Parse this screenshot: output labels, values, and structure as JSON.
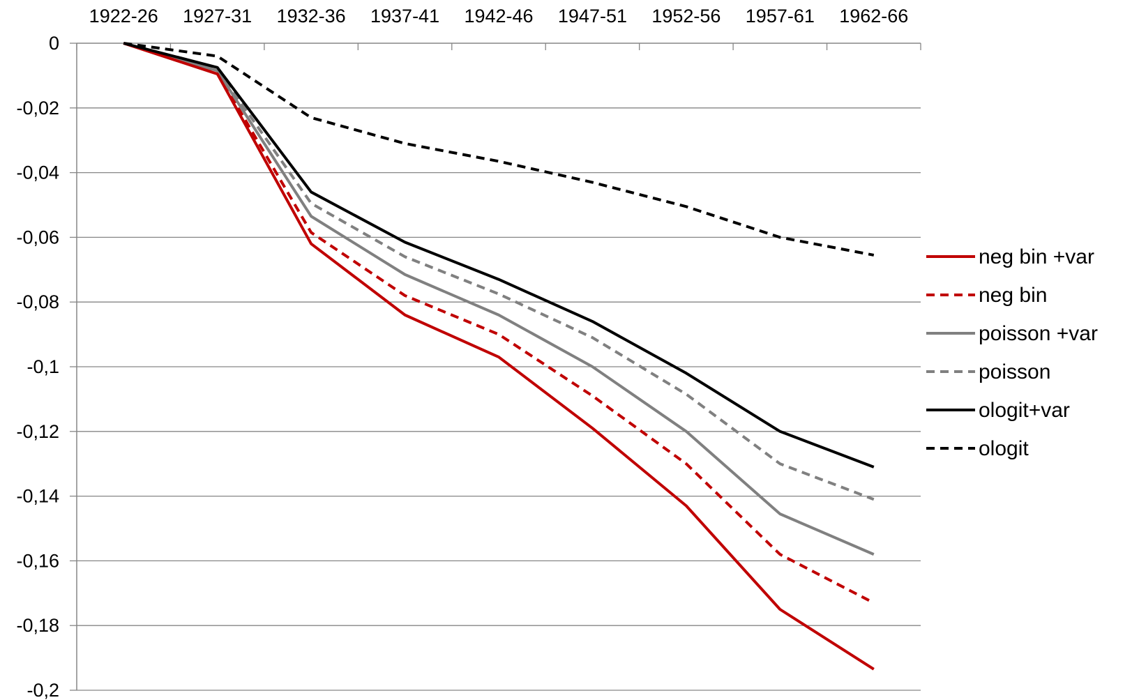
{
  "chart_data": {
    "type": "line",
    "title": "",
    "xlabel": "",
    "ylabel": "",
    "categories": [
      "1922-26",
      "1927-31",
      "1932-36",
      "1937-41",
      "1942-46",
      "1947-51",
      "1952-56",
      "1957-61",
      "1962-66"
    ],
    "ylim": [
      -0.2,
      0
    ],
    "yticks": [
      0,
      -0.02,
      -0.04,
      -0.06,
      -0.08,
      -0.1,
      -0.12,
      -0.14,
      -0.16,
      -0.18,
      -0.2
    ],
    "ytick_labels": [
      "0",
      "-0,02",
      "-0,04",
      "-0,06",
      "-0,08",
      "-0,1",
      "-0,12",
      "-0,14",
      "-0,16",
      "-0,18",
      "-0,2"
    ],
    "x_axis_position": "top",
    "grid": "horizontal",
    "legend_position": "right",
    "series": [
      {
        "name": "neg bin +var",
        "color": "#c00000",
        "dash": "solid",
        "values": [
          0,
          -0.0095,
          -0.062,
          -0.084,
          -0.097,
          -0.119,
          -0.143,
          -0.175,
          -0.1935
        ]
      },
      {
        "name": "neg bin",
        "color": "#c00000",
        "dash": "dashed",
        "values": [
          0,
          -0.009,
          -0.0585,
          -0.078,
          -0.09,
          -0.109,
          -0.13,
          -0.158,
          -0.173
        ]
      },
      {
        "name": "poisson +var",
        "color": "#808080",
        "dash": "solid",
        "values": [
          0,
          -0.0085,
          -0.0535,
          -0.0715,
          -0.084,
          -0.1,
          -0.12,
          -0.1455,
          -0.158
        ]
      },
      {
        "name": "poisson",
        "color": "#808080",
        "dash": "dashed",
        "values": [
          0,
          -0.008,
          -0.0495,
          -0.066,
          -0.0775,
          -0.091,
          -0.1085,
          -0.13,
          -0.141
        ]
      },
      {
        "name": "ologit+var",
        "color": "#000000",
        "dash": "solid",
        "values": [
          0,
          -0.0075,
          -0.046,
          -0.0615,
          -0.073,
          -0.086,
          -0.102,
          -0.12,
          -0.131
        ]
      },
      {
        "name": "ologit",
        "color": "#000000",
        "dash": "dashed",
        "values": [
          0,
          -0.004,
          -0.023,
          -0.031,
          -0.0365,
          -0.043,
          -0.0505,
          -0.06,
          -0.0655
        ]
      }
    ]
  }
}
